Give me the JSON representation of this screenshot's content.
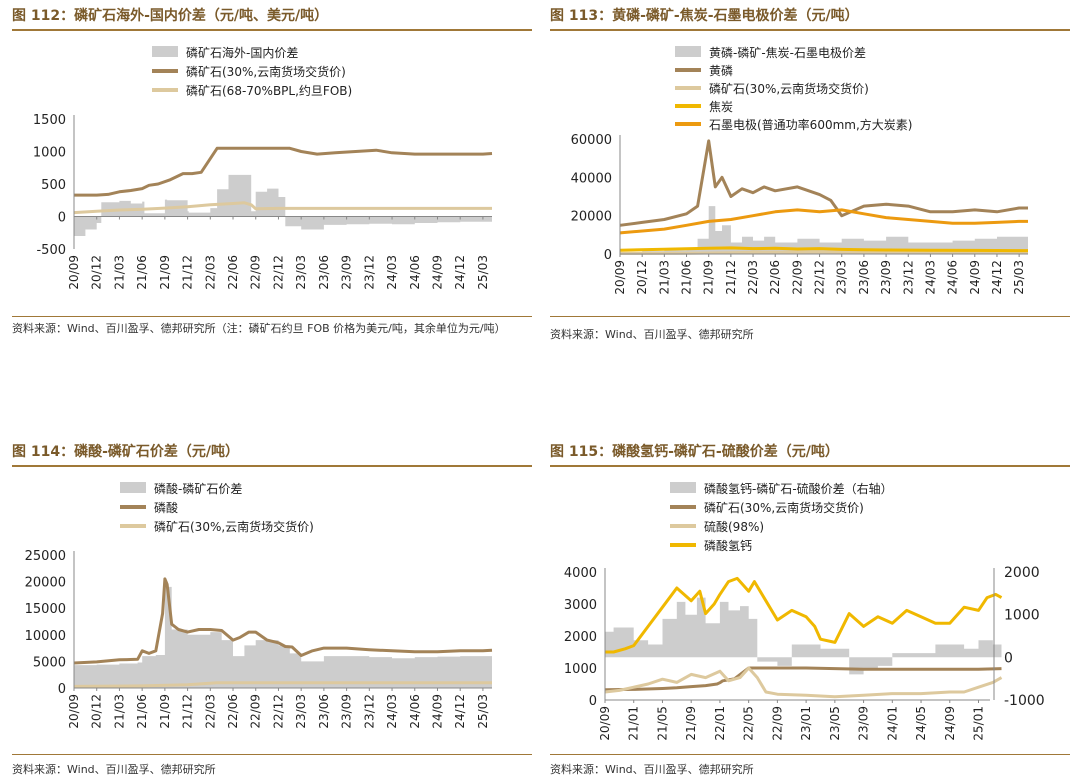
{
  "source_short": "资料来源：Wind、百川盈孚、德邦研究所",
  "colors": {
    "brown": "#a38358",
    "beige": "#ddc99e",
    "gray": "#cdcdcd",
    "gold": "#f0b800",
    "orange": "#ec9a10",
    "title": "#7a5a2a"
  },
  "charts": [
    {
      "id": "c112",
      "title": "图 112：磷矿石海外-国内价差（元/吨、美元/吨）",
      "source": "资料来源：Wind、百川盈孚、德邦研究所（注：磷矿石约旦 FOB 价格为美元/吨，其余单位为元/吨）",
      "chart_data": {
        "type": "line",
        "x_ticks": [
          "20/09",
          "20/12",
          "21/03",
          "21/06",
          "21/09",
          "21/12",
          "22/03",
          "22/06",
          "22/09",
          "22/12",
          "23/03",
          "23/06",
          "23/09",
          "23/12",
          "24/03",
          "24/06",
          "24/09",
          "24/12",
          "25/03"
        ],
        "ylim": [
          -500,
          1500
        ],
        "y_ticks": [
          -500,
          0,
          500,
          1000,
          1500
        ],
        "series": [
          {
            "name": "磷矿石海外-国内价差",
            "type": "area",
            "color": "gray",
            "x": [
              0,
              0.5,
              1,
              1.2,
              2,
              2.5,
              3,
              3.1,
              4,
              4.1,
              5,
              5.05,
              6,
              6.3,
              6.8,
              7.8,
              8,
              8.5,
              9,
              9.3,
              10,
              11,
              12,
              13,
              14,
              15,
              16,
              17,
              18,
              18.4
            ],
            "y": [
              -300,
              -200,
              -100,
              220,
              240,
              200,
              230,
              50,
              260,
              250,
              80,
              60,
              130,
              420,
              640,
              80,
              380,
              430,
              300,
              -150,
              -200,
              -130,
              -120,
              -110,
              -120,
              -100,
              -90,
              -80,
              -80,
              -80
            ]
          },
          {
            "name": "磷矿石(30%,云南货场交货价)",
            "type": "line",
            "color": "brown",
            "x": [
              0,
              1,
              1.5,
              2,
              2.5,
              3,
              3.3,
              3.7,
              4.2,
              4.8,
              5.2,
              5.6,
              6.3,
              7,
              7.5,
              8,
              8.5,
              9,
              9.5,
              10,
              10.7,
              11.5,
              12.4,
              13.3,
              14,
              15,
              16,
              17,
              18,
              18.4
            ],
            "y": [
              330,
              330,
              340,
              380,
              400,
              430,
              480,
              500,
              560,
              660,
              660,
              680,
              1050,
              1050,
              1050,
              1050,
              1050,
              1050,
              1050,
              1000,
              960,
              980,
              1000,
              1020,
              980,
              960,
              960,
              960,
              960,
              970
            ]
          },
          {
            "name": "磷矿石(68-70%BPL,约旦FOB)",
            "type": "line",
            "color": "beige",
            "x": [
              0,
              1,
              2,
              3,
              4,
              5,
              6,
              7,
              7.5,
              7.8,
              8,
              9,
              10,
              11,
              12,
              13,
              14,
              15,
              16,
              17,
              18,
              18.4
            ],
            "y": [
              60,
              80,
              100,
              110,
              130,
              150,
              180,
              200,
              210,
              180,
              120,
              125,
              125,
              125,
              125,
              125,
              125,
              125,
              125,
              125,
              125,
              125
            ]
          }
        ]
      }
    },
    {
      "id": "c113",
      "title": "图 113：黄磷-磷矿-焦炭-石墨电极价差（元/吨）",
      "source": "资料来源：Wind、百川盈孚、德邦研究所",
      "chart_data": {
        "type": "line",
        "x_ticks": [
          "20/09",
          "20/12",
          "21/03",
          "21/06",
          "21/09",
          "21/12",
          "22/03",
          "22/06",
          "22/09",
          "22/12",
          "23/03",
          "23/06",
          "23/09",
          "23/12",
          "24/03",
          "24/06",
          "24/09",
          "24/12",
          "25/03"
        ],
        "ylim": [
          0,
          60000
        ],
        "y_ticks": [
          0,
          20000,
          40000,
          60000
        ],
        "series": [
          {
            "name": "黄磷-磷矿-焦炭-石墨电极价差",
            "type": "area",
            "color": "gray",
            "x": [
              0,
              1,
              2,
              3,
              3.5,
              4,
              4.3,
              4.6,
              5,
              5.5,
              6,
              6.5,
              7,
              8,
              9,
              10,
              11,
              12,
              13,
              14,
              15,
              16,
              17,
              18,
              18.4
            ],
            "y": [
              1000,
              1500,
              2000,
              3000,
              8000,
              25000,
              12000,
              15000,
              6000,
              9000,
              7000,
              9000,
              6000,
              8000,
              6000,
              8000,
              7000,
              9000,
              6000,
              6000,
              7000,
              8000,
              9000,
              9000,
              9000
            ]
          },
          {
            "name": "黄磷",
            "type": "line",
            "color": "brown",
            "x": [
              0,
              1,
              2,
              3,
              3.5,
              4,
              4.3,
              4.6,
              5,
              5.5,
              6,
              6.5,
              7,
              8,
              9,
              9.5,
              10,
              11,
              12,
              13,
              14,
              15,
              16,
              17,
              18,
              18.4
            ],
            "y": [
              15000,
              16500,
              18000,
              21000,
              25000,
              59000,
              35000,
              40000,
              30000,
              34000,
              32000,
              35000,
              33000,
              35000,
              31000,
              28000,
              20000,
              25000,
              26000,
              25000,
              22000,
              22000,
              23000,
              22000,
              24000,
              24000
            ]
          },
          {
            "name": "磷矿石(30%,云南货场交货价)",
            "type": "line",
            "color": "beige",
            "x": [
              0,
              3,
              5,
              6.3,
              10,
              18.4
            ],
            "y": [
              300,
              400,
              600,
              1000,
              1000,
              950
            ]
          },
          {
            "name": "焦炭",
            "type": "line",
            "color": "gold",
            "x": [
              0,
              2,
              4,
              5,
              6,
              7,
              8,
              9,
              10,
              11,
              12,
              14,
              16,
              18,
              18.4
            ],
            "y": [
              2000,
              2500,
              3000,
              3200,
              2800,
              3000,
              2600,
              2800,
              2400,
              2200,
              2100,
              2000,
              1900,
              1800,
              1800
            ]
          },
          {
            "name": "石墨电极(普通功率600mm,方大炭素)",
            "type": "line",
            "color": "orange",
            "x": [
              0,
              2,
              3,
              4,
              5,
              6,
              7,
              8,
              9,
              10,
              11,
              12,
              13,
              14,
              15,
              16,
              17,
              18,
              18.4
            ],
            "y": [
              11000,
              13000,
              15000,
              17000,
              18000,
              20000,
              22000,
              23000,
              22000,
              23000,
              21000,
              19000,
              18000,
              17000,
              16000,
              16000,
              16500,
              17000,
              17000
            ]
          }
        ]
      }
    },
    {
      "id": "c114",
      "title": "图 114：磷酸-磷矿石价差（元/吨）",
      "source": "资料来源：Wind、百川盈孚、德邦研究所",
      "chart_data": {
        "type": "line",
        "x_ticks": [
          "20/09",
          "20/12",
          "21/03",
          "21/06",
          "21/09",
          "21/12",
          "22/03",
          "22/06",
          "22/09",
          "22/12",
          "23/03",
          "23/06",
          "23/09",
          "23/12",
          "24/03",
          "24/06",
          "24/09",
          "24/12",
          "25/03"
        ],
        "ylim": [
          0,
          25000
        ],
        "y_ticks": [
          0,
          5000,
          10000,
          15000,
          20000,
          25000
        ],
        "series": [
          {
            "name": "磷酸-磷矿石价差",
            "type": "area",
            "color": "gray",
            "x": [
              0,
              1,
              2,
              2.8,
              3,
              3.3,
              3.6,
              4,
              4.3,
              5,
              6,
              6.5,
              7,
              7.5,
              8,
              8.5,
              9,
              9.5,
              10,
              11,
              12,
              13,
              14,
              15,
              16,
              17,
              18,
              18.4
            ],
            "y": [
              4300,
              4400,
              4600,
              4800,
              6000,
              6000,
              6200,
              19000,
              11000,
              10000,
              10500,
              9000,
              6000,
              8000,
              9000,
              9000,
              8000,
              6500,
              5000,
              6000,
              6000,
              5800,
              5600,
              5800,
              5900,
              6000,
              6000,
              6000
            ]
          },
          {
            "name": "磷酸",
            "type": "line",
            "color": "brown",
            "x": [
              0,
              1,
              2,
              2.8,
              3,
              3.3,
              3.6,
              3.9,
              4,
              4.1,
              4.3,
              4.6,
              5,
              5.5,
              6,
              6.5,
              7,
              7.3,
              7.7,
              8,
              8.5,
              9,
              9.3,
              9.6,
              10,
              10.5,
              11,
              12,
              13,
              14,
              15,
              16,
              17,
              18,
              18.4
            ],
            "y": [
              4700,
              4900,
              5300,
              5400,
              7000,
              6500,
              7000,
              14000,
              20500,
              19500,
              12000,
              11000,
              10500,
              11000,
              11000,
              10800,
              9000,
              9500,
              10500,
              10500,
              9000,
              8500,
              7800,
              7700,
              6100,
              7000,
              7500,
              7500,
              7200,
              7000,
              6800,
              6800,
              7000,
              7000,
              7100
            ]
          },
          {
            "name": "磷矿石(30%,云南货场交货价)",
            "type": "line",
            "color": "beige",
            "x": [
              0,
              3,
              5,
              6.3,
              10,
              18.4
            ],
            "y": [
              300,
              400,
              600,
              1000,
              1000,
              1000
            ]
          }
        ]
      }
    },
    {
      "id": "c115",
      "title": "图 115：磷酸氢钙-磷矿石-硫酸价差（元/吨）",
      "source": "资料来源：Wind、百川盈孚、德邦研究所",
      "chart_data": {
        "type": "line",
        "x_ticks": [
          "20/09",
          "21/01",
          "21/05",
          "21/09",
          "22/01",
          "22/05",
          "22/09",
          "23/01",
          "23/05",
          "23/09",
          "24/01",
          "24/05",
          "24/09",
          "25/01"
        ],
        "ylim": [
          0,
          4000
        ],
        "y_ticks": [
          0,
          1000,
          2000,
          3000,
          4000
        ],
        "y2lim": [
          -1000,
          2000
        ],
        "y2_ticks": [
          -1000,
          0,
          1000,
          2000
        ],
        "series": [
          {
            "name": "磷酸氢钙-磷矿石-硫酸价差（右轴）",
            "type": "area",
            "axis": "right",
            "color": "gray",
            "x": [
              0,
              0.3,
              1,
              1.5,
              2,
              2.5,
              2.8,
              3.2,
              3.5,
              4,
              4.3,
              4.7,
              5,
              5.3,
              6,
              6.5,
              7,
              7.5,
              8,
              8.5,
              9,
              9.5,
              10,
              10.5,
              11,
              11.5,
              12,
              12.5,
              13,
              13.5,
              13.8
            ],
            "y": [
              600,
              700,
              400,
              300,
              900,
              1300,
              1000,
              1400,
              800,
              1300,
              1100,
              1200,
              900,
              -100,
              -200,
              300,
              300,
              200,
              200,
              -400,
              -300,
              -200,
              100,
              100,
              100,
              300,
              300,
              200,
              400,
              300,
              200
            ]
          },
          {
            "name": "磷矿石(30%,云南货场交货价)",
            "type": "line",
            "axis": "left",
            "color": "brown",
            "x": [
              0,
              1,
              2,
              2.5,
              3,
              3.5,
              3.9,
              4,
              4.1,
              4.5,
              5,
              6,
              7,
              8,
              9,
              10,
              11,
              12,
              13,
              13.8
            ],
            "y": [
              320,
              330,
              360,
              380,
              420,
              450,
              500,
              540,
              600,
              660,
              1000,
              1000,
              1000,
              980,
              960,
              960,
              960,
              960,
              960,
              980
            ]
          },
          {
            "name": "硫酸(98%)",
            "type": "line",
            "axis": "left",
            "color": "beige",
            "x": [
              0,
              0.5,
              1,
              1.5,
              2,
              2.5,
              3,
              3.5,
              4,
              4.3,
              4.7,
              5,
              5.3,
              5.6,
              6,
              7,
              8,
              9,
              10,
              11,
              12,
              12.5,
              13,
              13.5,
              13.8
            ],
            "y": [
              250,
              300,
              400,
              500,
              650,
              550,
              800,
              700,
              900,
              600,
              700,
              1000,
              700,
              250,
              180,
              150,
              100,
              150,
              200,
              200,
              250,
              250,
              400,
              550,
              700
            ]
          },
          {
            "name": "磷酸氢钙",
            "type": "line",
            "axis": "left",
            "color": "gold",
            "x": [
              0,
              0.3,
              0.7,
              1,
              1.5,
              2,
              2.5,
              3,
              3.3,
              3.5,
              3.8,
              4,
              4.3,
              4.6,
              5,
              5.2,
              5.6,
              6,
              6.5,
              7,
              7.3,
              7.5,
              8,
              8.5,
              9,
              9.5,
              10,
              10.5,
              11,
              11.5,
              12,
              12.5,
              13,
              13.3,
              13.6,
              13.8
            ],
            "y": [
              1500,
              1500,
              1600,
              1700,
              2300,
              2900,
              3500,
              3100,
              3400,
              2700,
              3000,
              3300,
              3700,
              3800,
              3400,
              3700,
              3100,
              2500,
              2800,
              2600,
              2300,
              1900,
              1800,
              2700,
              2300,
              2600,
              2400,
              2800,
              2600,
              2400,
              2400,
              2900,
              2800,
              3200,
              3300,
              3200
            ]
          }
        ]
      }
    }
  ]
}
